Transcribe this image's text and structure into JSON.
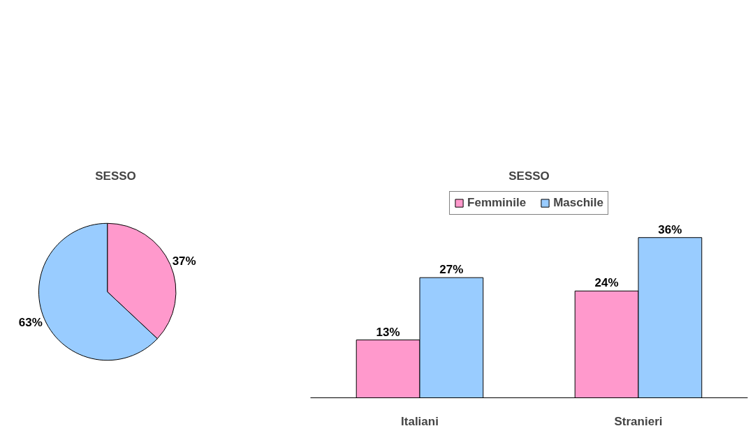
{
  "chart_data": [
    {
      "type": "pie",
      "title": "SESSO",
      "categories": [
        null,
        null
      ],
      "values": [
        37,
        63
      ],
      "colors": [
        "#ff99cc",
        "#99ccff"
      ],
      "value_labels": [
        "37%",
        "63%"
      ]
    },
    {
      "type": "bar",
      "title": "SESSO",
      "categories": [
        "Italiani",
        "Stranieri"
      ],
      "legend": "top",
      "series": [
        {
          "name": "Femminile",
          "color": "#ff99cc",
          "values": [
            13,
            24
          ],
          "value_labels": [
            "13%",
            "24%"
          ]
        },
        {
          "name": "Maschile",
          "color": "#99ccff",
          "values": [
            27,
            36
          ],
          "value_labels": [
            "27%",
            "36%"
          ]
        }
      ]
    }
  ]
}
